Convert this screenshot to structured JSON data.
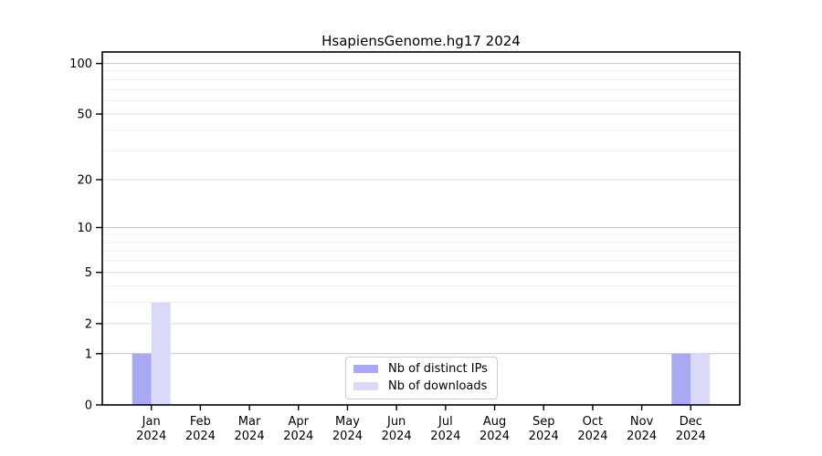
{
  "figure": {
    "background": "#ffffff"
  },
  "chart_data": {
    "type": "bar",
    "title": "HsapiensGenome.hg17 2024",
    "categories": [
      "Jan",
      "Feb",
      "Mar",
      "Apr",
      "May",
      "Jun",
      "Jul",
      "Aug",
      "Sep",
      "Oct",
      "Nov",
      "Dec"
    ],
    "category_year": "2024",
    "series": [
      {
        "name": "Nb of distinct IPs",
        "color": "#a9a9f3",
        "values": [
          1,
          0,
          0,
          0,
          0,
          0,
          0,
          0,
          0,
          0,
          0,
          1
        ]
      },
      {
        "name": "Nb of downloads",
        "color": "#dadaf8",
        "values": [
          3,
          0,
          0,
          0,
          0,
          0,
          0,
          0,
          0,
          0,
          0,
          1
        ]
      }
    ],
    "y_axis": {
      "scale": "log1p",
      "ticks": [
        0,
        1,
        2,
        5,
        10,
        20,
        50,
        100
      ],
      "max": 117,
      "gridlines": {
        "major": [
          1,
          10,
          100
        ],
        "mid": [
          2,
          5,
          20,
          50
        ],
        "minor": [
          3,
          4,
          6,
          7,
          8,
          9,
          30,
          40,
          60,
          70,
          80,
          90
        ],
        "major_color": "#c6c6c6",
        "mid_color": "#dddddd",
        "minor_color": "#f0f0f0"
      }
    },
    "legend_position": "bottom-center",
    "axis_color": "#000000",
    "tick_label_color": "#000000"
  }
}
